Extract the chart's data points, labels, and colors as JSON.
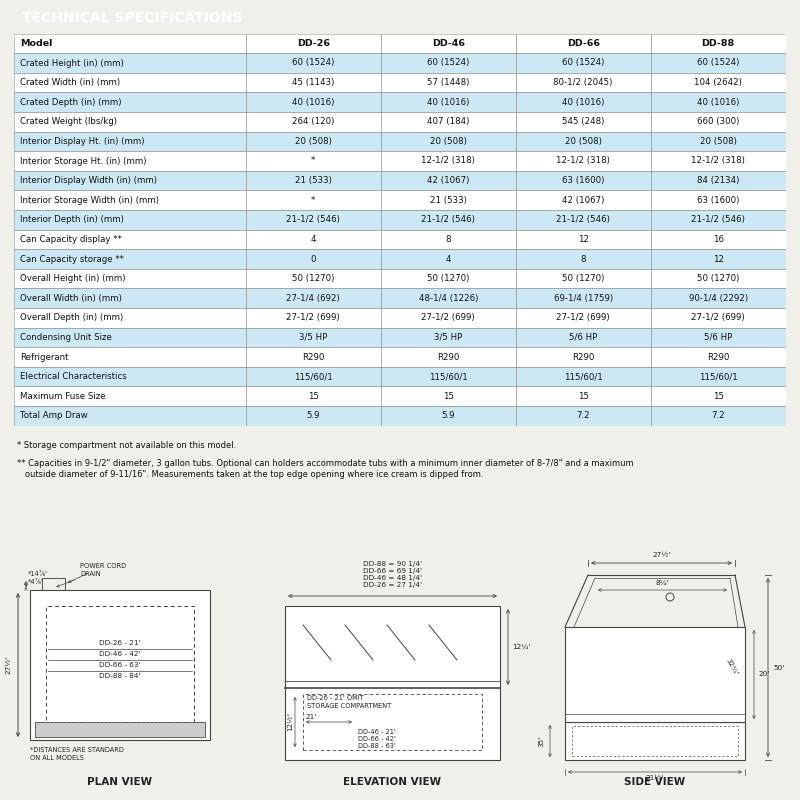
{
  "title": "TECHNICAL SPECIFICATIONS",
  "title_bg": "#1a1a1a",
  "title_color": "#ffffff",
  "header_row": [
    "Model",
    "DD-26",
    "DD-46",
    "DD-66",
    "DD-88"
  ],
  "rows": [
    [
      "Crated Height (in) (mm)",
      "60 (1524)",
      "60 (1524)",
      "60 (1524)",
      "60 (1524)"
    ],
    [
      "Crated Width (in) (mm)",
      "45 (1143)",
      "57 (1448)",
      "80-1/2 (2045)",
      "104 (2642)"
    ],
    [
      "Crated Depth (in) (mm)",
      "40 (1016)",
      "40 (1016)",
      "40 (1016)",
      "40 (1016)"
    ],
    [
      "Crated Weight (lbs/kg)",
      "264 (120)",
      "407 (184)",
      "545 (248)",
      "660 (300)"
    ],
    [
      "Interior Display Ht. (in) (mm)",
      "20 (508)",
      "20 (508)",
      "20 (508)",
      "20 (508)"
    ],
    [
      "Interior Storage Ht. (in) (mm)",
      "*",
      "12-1/2 (318)",
      "12-1/2 (318)",
      "12-1/2 (318)"
    ],
    [
      "Interior Display Width (in) (mm)",
      "21 (533)",
      "42 (1067)",
      "63 (1600)",
      "84 (2134)"
    ],
    [
      "Interior Storage Width (in) (mm)",
      "*",
      "21 (533)",
      "42 (1067)",
      "63 (1600)"
    ],
    [
      "Interior Depth (in) (mm)",
      "21-1/2 (546)",
      "21-1/2 (546)",
      "21-1/2 (546)",
      "21-1/2 (546)"
    ],
    [
      "Can Capacity display **",
      "4",
      "8",
      "12",
      "16"
    ],
    [
      "Can Capacity storage **",
      "0",
      "4",
      "8",
      "12"
    ],
    [
      "Overall Height (in) (mm)",
      "50 (1270)",
      "50 (1270)",
      "50 (1270)",
      "50 (1270)"
    ],
    [
      "Overall Width (in) (mm)",
      "27-1/4 (692)",
      "48-1/4 (1226)",
      "69-1/4 (1759)",
      "90-1/4 (2292)"
    ],
    [
      "Overall Depth (in) (mm)",
      "27-1/2 (699)",
      "27-1/2 (699)",
      "27-1/2 (699)",
      "27-1/2 (699)"
    ],
    [
      "Condensing Unit Size",
      "3/5 HP",
      "3/5 HP",
      "5/6 HP",
      "5/6 HP"
    ],
    [
      "Refrigerant",
      "R290",
      "R290",
      "R290",
      "R290"
    ],
    [
      "Electrical Characteristics",
      "115/60/1",
      "115/60/1",
      "115/60/1",
      "115/60/1"
    ],
    [
      "Maximum Fuse Size",
      "15",
      "15",
      "15",
      "15"
    ],
    [
      "Total Amp Draw",
      "5.9",
      "5.9",
      "7.2",
      "7.2"
    ]
  ],
  "light_blue": "#cce8f4",
  "white": "#ffffff",
  "note1": "* Storage compartment not available on this model.",
  "note2": "** Capacities in 9-1/2\" diameter, 3 gallon tubs. Optional can holders accommodate tubs with a minimum inner diameter of 8-7/8\" and a maximum\n   outside diameter of 9-11/16\". Measurements taken at the top edge opening where ice cream is dipped from.",
  "bg_color": "#f0f0eb"
}
